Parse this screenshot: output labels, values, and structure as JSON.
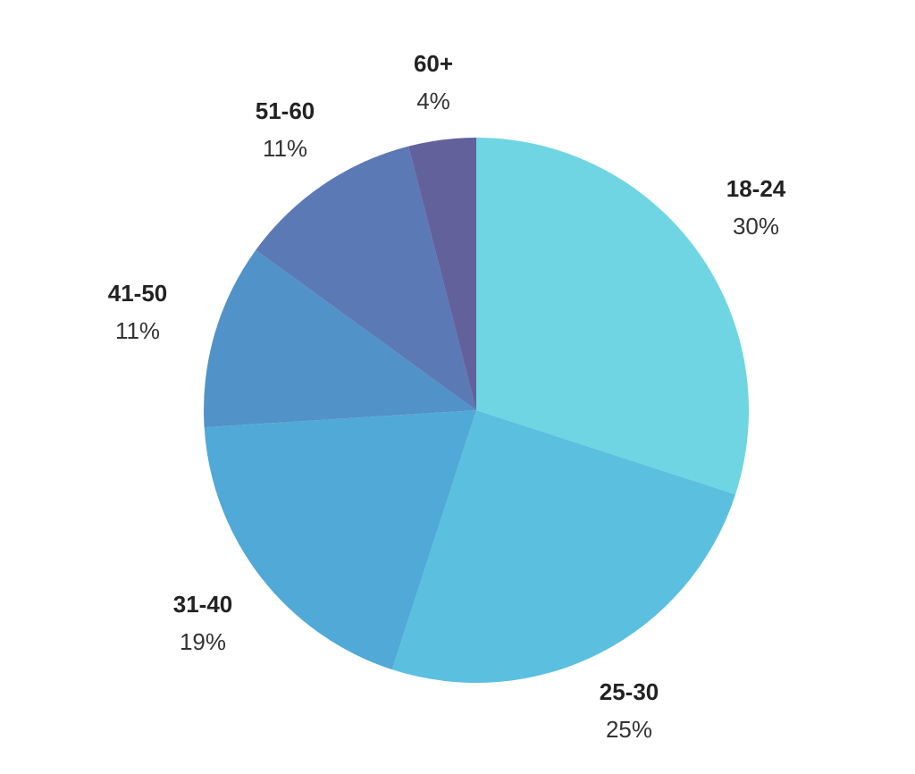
{
  "chart_data": {
    "type": "pie",
    "title": "",
    "categories": [
      "18-24",
      "25-30",
      "31-40",
      "41-50",
      "51-60",
      "60+"
    ],
    "values": [
      30,
      25,
      19,
      11,
      11,
      4
    ],
    "unit": "%",
    "colors": [
      "#6fd5e2",
      "#5bbfdf",
      "#50a9d6",
      "#5192c8",
      "#5b79b5",
      "#63619b"
    ],
    "start_angle_deg": 0,
    "direction": "clockwise",
    "legend": "none",
    "labels": [
      {
        "category": "18-24",
        "percent": "30%"
      },
      {
        "category": "25-30",
        "percent": "25%"
      },
      {
        "category": "31-40",
        "percent": "19%"
      },
      {
        "category": "41-50",
        "percent": "11%"
      },
      {
        "category": "51-60",
        "percent": "11%"
      },
      {
        "category": "60+",
        "percent": "4%"
      }
    ]
  }
}
